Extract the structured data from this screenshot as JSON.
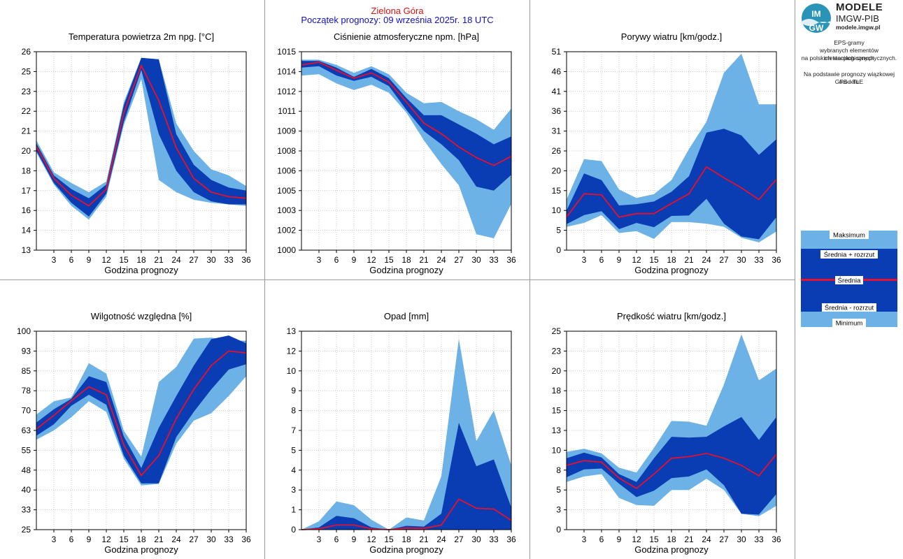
{
  "header": {
    "city": "Zielona Góra",
    "forecast_start": "Początek prognozy: 09 września 2025r. 18 UTC"
  },
  "sidebar": {
    "logo_title": "MODELE",
    "logo_org": "IMGW-PIB",
    "logo_url": "modele.imgw.pl",
    "desc_lines": [
      "EPS-gramy",
      "wybranych elementów meteorologicznych",
      "na polskich stacjach  synoptycznych."
    ],
    "basis_lines": [
      "Na podstawie prognozy wiązkowej modelu",
      "GFS - TLE"
    ]
  },
  "legend": {
    "max_label": "Maksimum",
    "upper_label": "Średnia + rozrzut",
    "mean_label": "Średnia",
    "lower_label": "Średnia - rozrzut",
    "min_label": "Minimum"
  },
  "colors": {
    "minmax_band": "#6cb2e6",
    "spread_band": "#0a3cb4",
    "mean_line": "#e8102a",
    "grid": "#aaaaaa",
    "title_city": "#e01010",
    "title_start": "#1010c0"
  },
  "chart_data": [
    {
      "type": "area",
      "title": "Temperatura powietrza 2m npg. [°C]",
      "xlabel": "Godzina prognozy",
      "ylabel": "",
      "x": [
        0,
        3,
        6,
        9,
        12,
        15,
        18,
        21,
        24,
        27,
        30,
        33,
        36
      ],
      "xticks": [
        3,
        6,
        9,
        12,
        15,
        18,
        21,
        24,
        27,
        30,
        33,
        36
      ],
      "ylim": [
        13,
        26
      ],
      "yticks": [
        "13",
        "14",
        "16",
        "17",
        "18",
        "20",
        "21",
        "22",
        "23",
        "25",
        "26"
      ],
      "ytick_values": [
        13,
        14.3,
        15.6,
        16.9,
        18.2,
        19.5,
        20.8,
        22.1,
        23.4,
        24.7,
        26
      ],
      "series": [
        {
          "role": "max",
          "values": [
            20.2,
            18.1,
            17.4,
            16.8,
            17.5,
            22.7,
            25.6,
            25.5,
            21.3,
            19.5,
            18.3,
            17.9,
            17.2
          ]
        },
        {
          "role": "upper",
          "values": [
            20.0,
            17.9,
            17.0,
            16.4,
            17.3,
            22.5,
            25.6,
            25.5,
            20.6,
            18.6,
            17.6,
            17.1,
            16.9
          ]
        },
        {
          "role": "mean",
          "values": [
            19.8,
            17.7,
            16.6,
            15.9,
            17.0,
            22.0,
            25.1,
            22.8,
            19.7,
            17.7,
            16.8,
            16.5,
            16.4
          ]
        },
        {
          "role": "lower",
          "values": [
            19.5,
            17.4,
            16.1,
            15.2,
            16.7,
            21.4,
            24.8,
            20.6,
            18.2,
            16.8,
            16.2,
            16.0,
            16.0
          ]
        },
        {
          "role": "min",
          "values": [
            19.4,
            17.3,
            15.9,
            15.0,
            16.5,
            21.2,
            24.2,
            17.6,
            16.8,
            16.3,
            16.1,
            16.0,
            15.9
          ]
        }
      ]
    },
    {
      "type": "area",
      "title": "Ciśnienie atmosferyczne npm. [hPa]",
      "xlabel": "Godzina prognozy",
      "ylabel": "",
      "x": [
        0,
        3,
        6,
        9,
        12,
        15,
        18,
        21,
        24,
        27,
        30,
        33,
        36
      ],
      "xticks": [
        3,
        6,
        9,
        12,
        15,
        18,
        21,
        24,
        27,
        30,
        33,
        36
      ],
      "ylim": [
        1000,
        1015
      ],
      "yticks": [
        "1000",
        "1002",
        "1003",
        "1005",
        "1006",
        "1008",
        "1009",
        "1011",
        "1012",
        "1014",
        "1015"
      ],
      "ytick_values": [
        1000,
        1001.5,
        1003,
        1004.5,
        1006,
        1007.5,
        1009,
        1010.5,
        1012,
        1013.5,
        1015
      ],
      "series": [
        {
          "role": "max",
          "values": [
            1014.4,
            1014.4,
            1014.0,
            1013.4,
            1013.9,
            1013.3,
            1011.9,
            1011.1,
            1011.2,
            1010.5,
            1009.9,
            1009.1,
            1010.7
          ]
        },
        {
          "role": "upper",
          "values": [
            1014.3,
            1014.3,
            1013.8,
            1013.1,
            1013.7,
            1013.0,
            1011.5,
            1010.2,
            1010.2,
            1009.5,
            1008.8,
            1008.0,
            1008.6
          ]
        },
        {
          "role": "mean",
          "values": [
            1014.0,
            1014.2,
            1013.6,
            1013.0,
            1013.4,
            1012.7,
            1011.2,
            1009.6,
            1008.8,
            1007.8,
            1007.0,
            1006.4,
            1007.1
          ]
        },
        {
          "role": "lower",
          "values": [
            1013.8,
            1013.9,
            1013.2,
            1012.8,
            1013.1,
            1012.4,
            1010.6,
            1009.0,
            1008.0,
            1006.8,
            1004.8,
            1004.5,
            1005.7
          ]
        },
        {
          "role": "min",
          "values": [
            1013.2,
            1013.3,
            1012.6,
            1012.1,
            1012.5,
            1011.9,
            1010.4,
            1008.3,
            1006.5,
            1004.9,
            1001.2,
            1000.9,
            1003.5
          ]
        }
      ]
    },
    {
      "type": "area",
      "title": "Porywy wiatru [km/godz.]",
      "xlabel": "Godzina prognozy",
      "ylabel": "",
      "x": [
        0,
        3,
        6,
        9,
        12,
        15,
        18,
        21,
        24,
        27,
        30,
        33,
        36
      ],
      "xticks": [
        3,
        6,
        9,
        12,
        15,
        18,
        21,
        24,
        27,
        30,
        33,
        36
      ],
      "ylim": [
        0,
        51
      ],
      "yticks": [
        "0",
        "5",
        "10",
        "15",
        "20",
        "26",
        "31",
        "36",
        "41",
        "46",
        "51"
      ],
      "ytick_values": [
        0,
        5.1,
        10.2,
        15.3,
        20.4,
        25.5,
        30.6,
        35.7,
        40.8,
        45.9,
        51
      ],
      "series": [
        {
          "role": "max",
          "values": [
            13.0,
            23.4,
            22.9,
            15.6,
            13.4,
            14.4,
            18.0,
            26.0,
            33.0,
            45.6,
            50.5,
            37.5,
            37.5
          ]
        },
        {
          "role": "upper",
          "values": [
            10.2,
            19.7,
            18.0,
            11.5,
            11.8,
            12.5,
            15.0,
            19.0,
            30.2,
            31.2,
            29.5,
            24.5,
            28.5
          ]
        },
        {
          "role": "mean",
          "values": [
            8.5,
            14.5,
            14.2,
            8.5,
            9.4,
            9.4,
            12.0,
            14.5,
            21.4,
            18.6,
            16.0,
            13.0,
            18.2
          ]
        },
        {
          "role": "lower",
          "values": [
            6.7,
            9.0,
            10.0,
            5.4,
            7.0,
            5.9,
            8.8,
            8.9,
            13.2,
            6.8,
            3.5,
            2.8,
            8.5
          ]
        },
        {
          "role": "min",
          "values": [
            6.0,
            7.0,
            9.0,
            4.4,
            4.9,
            2.9,
            7.2,
            7.2,
            6.8,
            6.0,
            3.2,
            2.0,
            4.8
          ]
        }
      ]
    },
    {
      "type": "area",
      "title": "Wilgotność względna [%]",
      "xlabel": "Godzina prognozy",
      "ylabel": "",
      "x": [
        0,
        3,
        6,
        9,
        12,
        15,
        18,
        21,
        24,
        27,
        30,
        33,
        36
      ],
      "xticks": [
        3,
        6,
        9,
        12,
        15,
        18,
        21,
        24,
        27,
        30,
        33,
        36
      ],
      "ylim": [
        25,
        100
      ],
      "yticks": [
        "25",
        "33",
        "40",
        "48",
        "55",
        "63",
        "70",
        "78",
        "85",
        "93",
        "100"
      ],
      "ytick_values": [
        25,
        32.5,
        40,
        47.5,
        55,
        62.5,
        70,
        77.5,
        85,
        92.5,
        100
      ],
      "series": [
        {
          "role": "max",
          "values": [
            68.5,
            73.5,
            75.0,
            87.9,
            84.0,
            62.4,
            52.6,
            80.8,
            86.5,
            97.2,
            97.6,
            96.5,
            96.4
          ]
        },
        {
          "role": "upper",
          "values": [
            65.5,
            70.5,
            74.5,
            83.0,
            80.8,
            60.2,
            48.3,
            63.5,
            75.5,
            87.0,
            97.0,
            98.4,
            95.4
          ]
        },
        {
          "role": "mean",
          "values": [
            63.0,
            68.2,
            73.7,
            79.0,
            76.0,
            57.0,
            45.5,
            53.0,
            67.0,
            78.0,
            87.0,
            92.5,
            91.8
          ]
        },
        {
          "role": "lower",
          "values": [
            60.5,
            64.8,
            71.8,
            76.0,
            72.2,
            53.0,
            42.5,
            42.5,
            60.0,
            69.5,
            78.0,
            85.5,
            87.5
          ]
        },
        {
          "role": "min",
          "values": [
            59.0,
            62.5,
            67.5,
            73.5,
            69.5,
            51.8,
            41.7,
            42.3,
            57.5,
            66.2,
            69.0,
            75.5,
            83.0
          ]
        }
      ]
    },
    {
      "type": "area",
      "title": "Opad [mm]",
      "xlabel": "Godzina prognozy",
      "ylabel": "",
      "x": [
        0,
        3,
        6,
        9,
        12,
        15,
        18,
        21,
        24,
        27,
        30,
        33,
        36
      ],
      "xticks": [
        3,
        6,
        9,
        12,
        15,
        18,
        21,
        24,
        27,
        30,
        33,
        36
      ],
      "ylim": [
        0,
        13
      ],
      "yticks": [
        "0",
        "1",
        "3",
        "4",
        "5",
        "7",
        "8",
        "9",
        "10",
        "12",
        "13"
      ],
      "ytick_values": [
        0,
        1.3,
        2.6,
        3.9,
        5.2,
        6.5,
        7.8,
        9.1,
        10.4,
        11.7,
        13
      ],
      "series": [
        {
          "role": "max",
          "values": [
            0.0,
            0.55,
            1.85,
            1.6,
            0.65,
            0.0,
            0.8,
            0.6,
            3.5,
            12.5,
            5.8,
            7.8,
            4.2
          ]
        },
        {
          "role": "upper",
          "values": [
            0.0,
            0.15,
            0.9,
            0.75,
            0.15,
            0.0,
            0.25,
            0.2,
            1.05,
            7.0,
            4.15,
            4.6,
            1.45
          ]
        },
        {
          "role": "mean",
          "values": [
            0.0,
            0.05,
            0.3,
            0.3,
            0.05,
            0.0,
            0.1,
            0.08,
            0.3,
            2.0,
            1.4,
            1.35,
            0.6
          ]
        },
        {
          "role": "lower",
          "values": [
            0.0,
            0.0,
            0.0,
            0.0,
            0.0,
            0.0,
            0.0,
            0.0,
            0.0,
            0.0,
            0.0,
            0.0,
            0.0
          ]
        },
        {
          "role": "min",
          "values": [
            0.0,
            0.0,
            0.0,
            0.0,
            0.0,
            0.0,
            0.0,
            0.0,
            0.0,
            0.0,
            0.0,
            0.0,
            0.0
          ]
        }
      ]
    },
    {
      "type": "area",
      "title": "Prędkość wiatru [km/godz.]",
      "xlabel": "Godzina prognozy",
      "ylabel": "",
      "x": [
        0,
        3,
        6,
        9,
        12,
        15,
        18,
        21,
        24,
        27,
        30,
        33,
        36
      ],
      "xticks": [
        3,
        6,
        9,
        12,
        15,
        18,
        21,
        24,
        27,
        30,
        33,
        36
      ],
      "ylim": [
        0,
        25
      ],
      "yticks": [
        "0",
        "3",
        "5",
        "8",
        "10",
        "13",
        "15",
        "18",
        "20",
        "23",
        "25"
      ],
      "ytick_values": [
        0,
        2.5,
        5,
        7.5,
        10,
        12.5,
        15,
        17.5,
        20,
        22.5,
        25
      ],
      "series": [
        {
          "role": "max",
          "values": [
            9.8,
            10.2,
            9.6,
            7.8,
            7.2,
            10.3,
            13.7,
            13.6,
            13.1,
            18.3,
            24.6,
            18.8,
            20.3
          ]
        },
        {
          "role": "upper",
          "values": [
            9.0,
            9.7,
            9.1,
            7.0,
            6.0,
            9.0,
            11.7,
            11.6,
            11.7,
            13.0,
            14.2,
            11.3,
            14.2
          ]
        },
        {
          "role": "mean",
          "values": [
            8.1,
            8.7,
            8.5,
            6.5,
            5.2,
            7.0,
            9.0,
            9.2,
            9.6,
            9.0,
            8.1,
            6.8,
            9.5
          ]
        },
        {
          "role": "lower",
          "values": [
            6.6,
            7.6,
            7.7,
            5.8,
            4.1,
            4.9,
            6.5,
            6.7,
            7.6,
            5.6,
            2.0,
            1.9,
            4.5
          ]
        },
        {
          "role": "min",
          "values": [
            6.0,
            6.7,
            7.0,
            4.0,
            3.1,
            3.0,
            5.0,
            5.0,
            6.4,
            5.0,
            2.0,
            1.7,
            3.0
          ]
        }
      ]
    }
  ]
}
